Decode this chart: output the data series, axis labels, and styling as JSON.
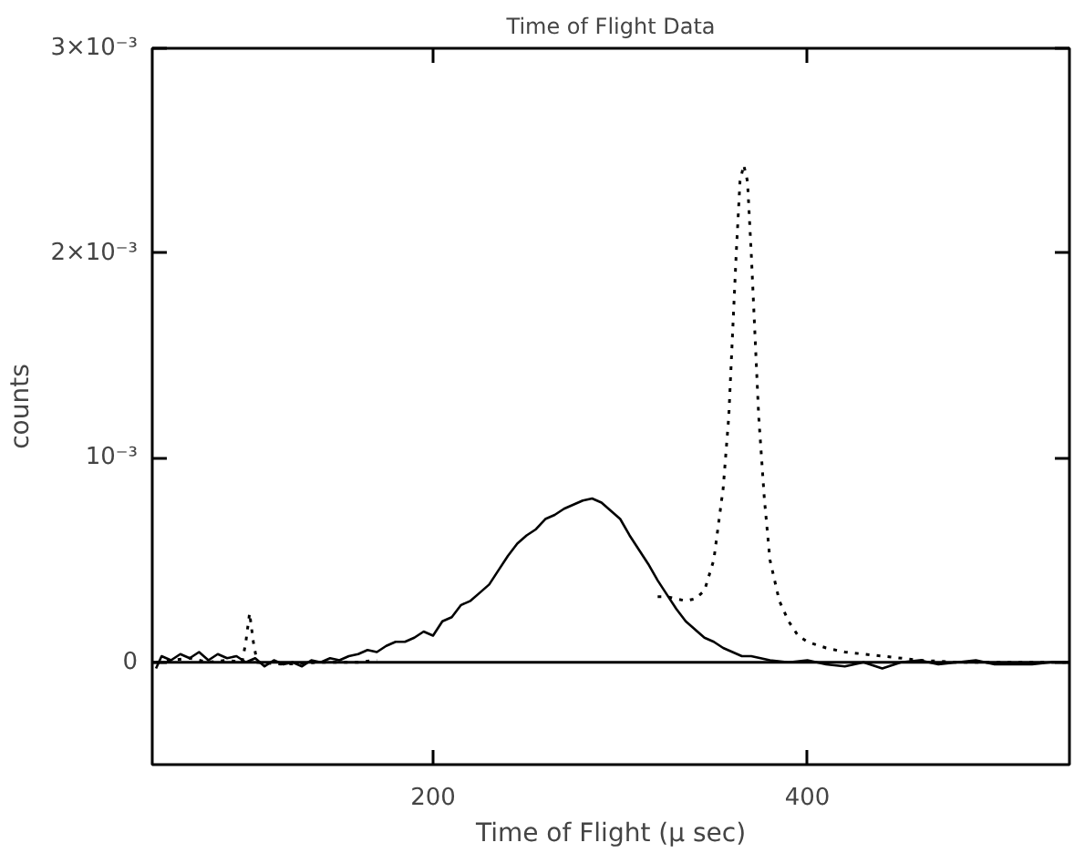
{
  "chart_data": {
    "type": "line",
    "title": "Time of Flight Data",
    "xlabel": "Time of Flight (μ sec)",
    "ylabel": "counts",
    "xlim": [
      50,
      540
    ],
    "ylim": [
      -0.0005,
      0.003
    ],
    "xticks": [
      200,
      400
    ],
    "yticks": [
      0,
      {
        "value": 0.001,
        "label": "10⁻³"
      },
      {
        "value": 0.002,
        "label": "2×10⁻³"
      },
      {
        "value": 0.003,
        "label": "3×10⁻³"
      }
    ],
    "ref_lines": [
      {
        "axis": "y",
        "value": 0,
        "color": "#000000",
        "line_style": "solid"
      }
    ],
    "series": [
      {
        "color": "#000000",
        "line_style": "solid",
        "x": [
          52,
          55,
          60,
          65,
          70,
          75,
          80,
          85,
          90,
          95,
          100,
          105,
          110,
          115,
          120,
          125,
          130,
          135,
          140,
          145,
          150,
          155,
          160,
          165,
          170,
          175,
          180,
          185,
          190,
          195,
          200,
          205,
          210,
          215,
          220,
          225,
          230,
          235,
          240,
          245,
          250,
          255,
          260,
          265,
          270,
          275,
          280,
          285,
          290,
          295,
          300,
          305,
          310,
          315,
          320,
          325,
          330,
          335,
          340,
          345,
          350,
          355,
          360,
          365,
          370,
          375,
          380,
          390,
          400,
          410,
          420,
          430,
          440,
          450,
          460,
          470,
          480,
          490,
          500,
          510,
          520,
          530,
          540
        ],
        "values": [
          -3e-05,
          3e-05,
          1e-05,
          4e-05,
          2e-05,
          5e-05,
          1e-05,
          4e-05,
          2e-05,
          3e-05,
          0,
          2e-05,
          -2e-05,
          1e-05,
          -1e-05,
          0,
          -2e-05,
          1e-05,
          0,
          2e-05,
          1e-05,
          3e-05,
          4e-05,
          6e-05,
          5e-05,
          8e-05,
          0.0001,
          0.0001,
          0.00012,
          0.00015,
          0.00013,
          0.0002,
          0.00022,
          0.00028,
          0.0003,
          0.00034,
          0.00038,
          0.00045,
          0.00052,
          0.00058,
          0.00062,
          0.00065,
          0.0007,
          0.00072,
          0.00075,
          0.00077,
          0.00079,
          0.0008,
          0.00078,
          0.00074,
          0.0007,
          0.00062,
          0.00055,
          0.00048,
          0.0004,
          0.00033,
          0.00026,
          0.0002,
          0.00016,
          0.00012,
          0.0001,
          7e-05,
          5e-05,
          3e-05,
          3e-05,
          2e-05,
          1e-05,
          0,
          1e-05,
          -1e-05,
          -2e-05,
          0,
          -3e-05,
          0,
          1e-05,
          -1e-05,
          0,
          1e-05,
          -1e-05,
          -1e-05,
          -1e-05,
          0,
          0
        ]
      },
      {
        "color": "#000000",
        "line_style": "dotted",
        "x": [
          52,
          60,
          70,
          80,
          90,
          98,
          100,
          102,
          104,
          106,
          120,
          140,
          160,
          170,
          175,
          315,
          320,
          325,
          330,
          335,
          340,
          345,
          350,
          355,
          358,
          360,
          362,
          364,
          366,
          368,
          370,
          372,
          374,
          377,
          380,
          385,
          390,
          395,
          400,
          410,
          420,
          440,
          460,
          480,
          500,
          520,
          540
        ],
        "values": [
          0,
          1e-05,
          2e-05,
          0,
          1e-05,
          0,
          0.0001,
          0.00024,
          0.0001,
          0,
          -1e-05,
          0,
          0,
          1e-05,
          null,
          null,
          0.00032,
          0.00032,
          0.00031,
          0.0003,
          0.00031,
          0.00035,
          0.0005,
          0.00085,
          0.0012,
          0.0016,
          0.002,
          0.00235,
          0.00243,
          0.00235,
          0.002,
          0.0016,
          0.0012,
          0.0008,
          0.0005,
          0.0003,
          0.0002,
          0.00013,
          0.0001,
          7e-05,
          5e-05,
          3e-05,
          1e-05,
          0,
          0,
          0,
          0
        ]
      }
    ]
  }
}
